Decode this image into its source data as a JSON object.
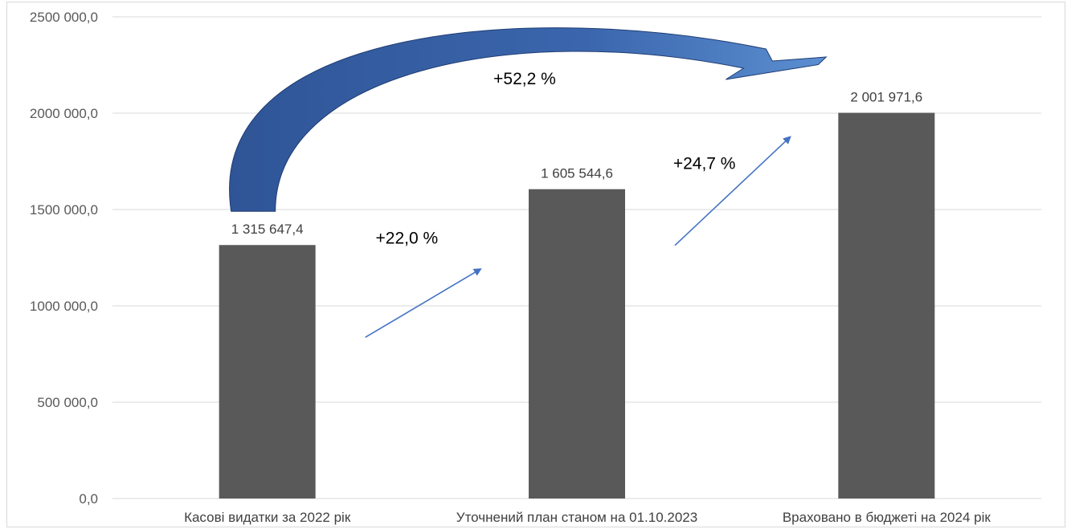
{
  "chart_data": {
    "type": "bar",
    "categories": [
      "Касові видатки за 2022 рік",
      "Уточнений план станом на 01.10.2023",
      "Враховано в бюджеті на 2024 рік"
    ],
    "values": [
      1315647.4,
      1605544.6,
      2001971.6
    ],
    "value_labels": [
      "1 315 647,4",
      "1 605 544,6",
      "2 001 971,6"
    ],
    "ylim": [
      0,
      2500000
    ],
    "y_ticks": [
      0,
      500000,
      1000000,
      1500000,
      2000000,
      2500000
    ],
    "y_tick_labels": [
      "0,0",
      "500 000,0",
      "1000 000,0",
      "1500 000,0",
      "2000 000,0",
      "2500 000,0"
    ],
    "grid": true,
    "bar_color": "#595959",
    "annotations": [
      {
        "text": "+22,0 %",
        "from": 0,
        "to": 1
      },
      {
        "text": "+24,7 %",
        "from": 1,
        "to": 2
      },
      {
        "text": "+52,2 %",
        "from": 0,
        "to": 2
      }
    ],
    "arrow_color": "#4472c4",
    "big_arrow_color": "#2f5597"
  }
}
